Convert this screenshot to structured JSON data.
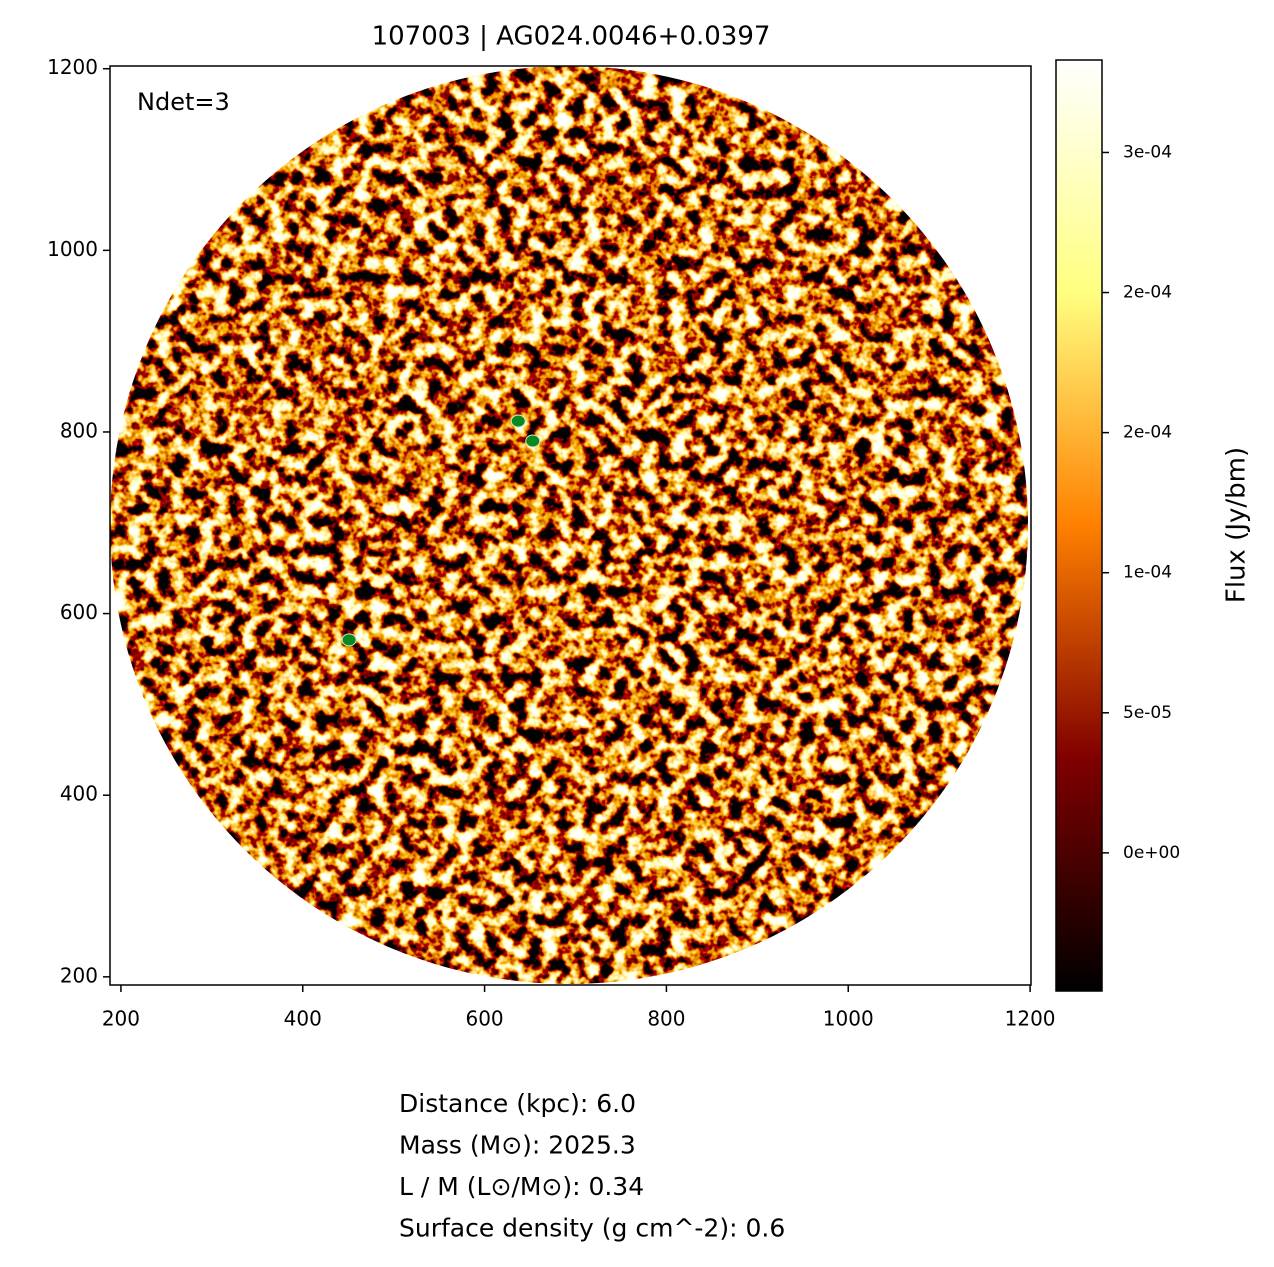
{
  "chart_data": {
    "type": "image",
    "title": "107003 | AG024.0046+0.0397",
    "annotation": "Ndet=3",
    "xlim": [
      188,
      1201
    ],
    "ylim": [
      191,
      1203
    ],
    "xticks": [
      200,
      400,
      600,
      800,
      1000,
      1200
    ],
    "yticks": [
      200,
      400,
      600,
      800,
      1000,
      1200
    ],
    "detections": {
      "x": [
        653,
        637,
        451
      ],
      "y": [
        790,
        812,
        571
      ],
      "color": "#0a8a1e"
    },
    "colorbar": {
      "label": "Flux (Jy/bm)",
      "clim": [
        -4.93e-05,
        0.000283
      ],
      "ticks": [
        {
          "value": 0,
          "label": "0e+00"
        },
        {
          "value": 5e-05,
          "label": "5e-05"
        },
        {
          "value": 0.0001,
          "label": "1e-04"
        },
        {
          "value": 0.00015,
          "label": "2e-04"
        },
        {
          "value": 0.0002,
          "label": "2e-04"
        },
        {
          "value": 0.00025,
          "label": "3e-04"
        }
      ],
      "colors": [
        "#000000",
        "#800000",
        "#ff8000",
        "#ffff80",
        "#ffffff"
      ]
    },
    "info": [
      "Distance (kpc): 6.0",
      "Mass (M⊙): 2025.3",
      "L / M (L⊙/M⊙): 0.34",
      "Surface density (g cm^-2): 0.6"
    ]
  }
}
